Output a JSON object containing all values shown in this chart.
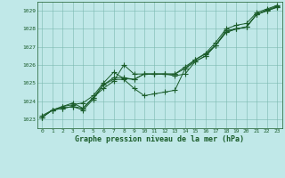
{
  "title": "Graphe pression niveau de la mer (hPa)",
  "background_color": "#c0e8e8",
  "grid_color": "#7ab8b0",
  "line_color": "#1a5c2a",
  "xlim": [
    -0.5,
    23.5
  ],
  "ylim": [
    1022.5,
    1029.5
  ],
  "yticks": [
    1023,
    1024,
    1025,
    1026,
    1027,
    1028,
    1029
  ],
  "xticks": [
    0,
    1,
    2,
    3,
    4,
    5,
    6,
    7,
    8,
    9,
    10,
    11,
    12,
    13,
    14,
    15,
    16,
    17,
    18,
    19,
    20,
    21,
    22,
    23
  ],
  "series": [
    [
      1023.1,
      1023.5,
      1023.6,
      1023.7,
      1023.5,
      1024.1,
      1024.9,
      1025.3,
      1025.3,
      1025.2,
      1025.5,
      1025.5,
      1025.5,
      1025.4,
      1025.5,
      1026.2,
      1026.5,
      1027.1,
      1027.9,
      1028.0,
      1028.1,
      1028.8,
      1029.05,
      1029.25
    ],
    [
      1023.1,
      1023.5,
      1023.7,
      1023.8,
      1023.9,
      1024.3,
      1025.0,
      1025.6,
      1025.25,
      1025.2,
      1025.5,
      1025.5,
      1025.5,
      1025.5,
      1025.9,
      1026.3,
      1026.65,
      1027.25,
      1028.0,
      1028.2,
      1028.3,
      1028.9,
      1029.1,
      1029.3
    ],
    [
      1023.1,
      1023.5,
      1023.6,
      1023.7,
      1023.6,
      1024.2,
      1024.7,
      1025.1,
      1026.0,
      1025.5,
      1025.5,
      1025.5,
      1025.5,
      1025.5,
      1025.8,
      1026.3,
      1026.6,
      1027.1,
      1027.8,
      1028.0,
      1028.1,
      1028.8,
      1029.0,
      1029.2
    ],
    [
      1023.2,
      1023.5,
      1023.7,
      1023.9,
      1023.6,
      1024.2,
      1024.9,
      1025.2,
      1025.2,
      1024.7,
      1024.3,
      1024.4,
      1024.5,
      1024.6,
      1025.8,
      1026.2,
      1026.5,
      1027.1,
      1027.8,
      1028.0,
      1028.1,
      1028.8,
      1029.0,
      1029.2
    ]
  ]
}
